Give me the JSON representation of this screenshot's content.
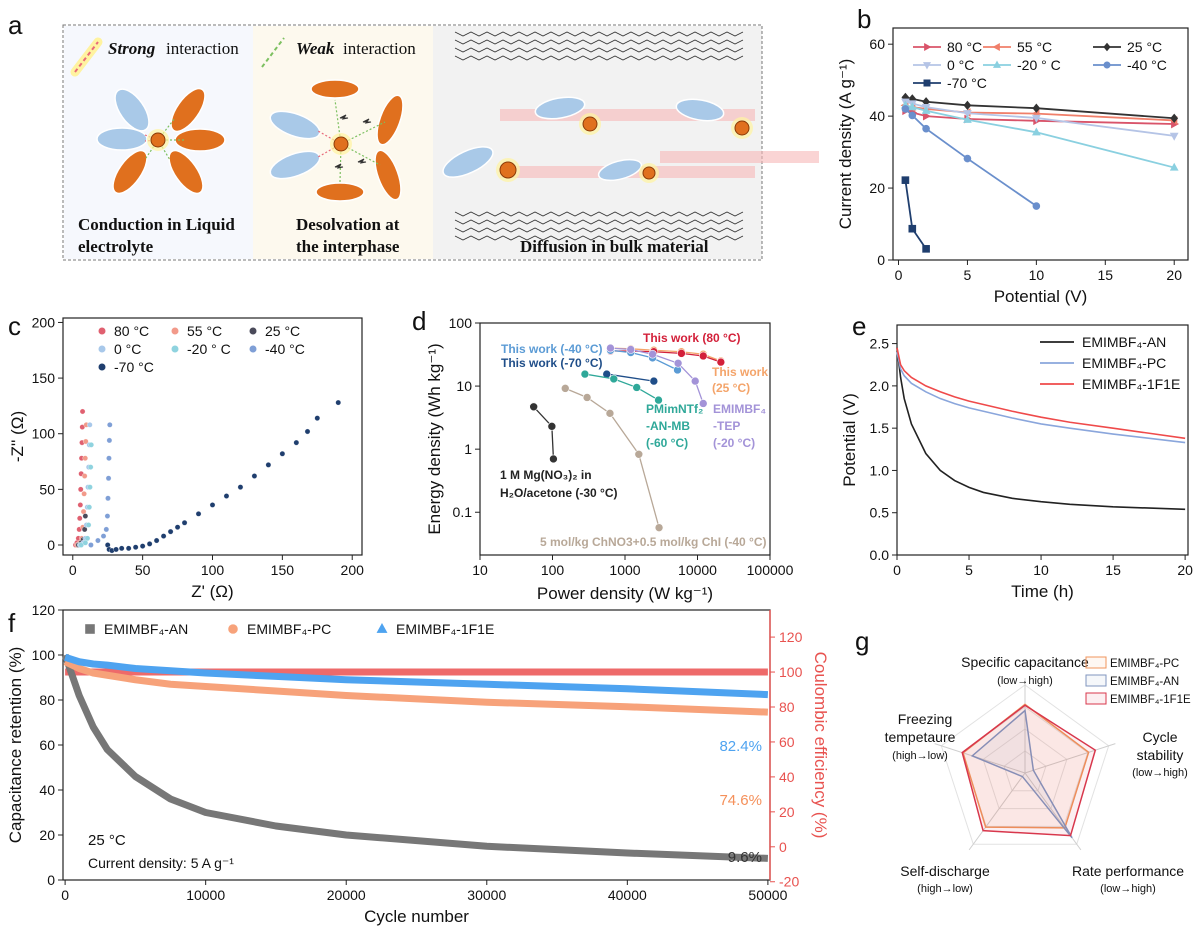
{
  "panel_labels": [
    "a",
    "b",
    "c",
    "d",
    "e",
    "f",
    "g"
  ],
  "panel_a": {
    "strong_word": "Strong",
    "strong_rest": " interaction",
    "weak_word": "Weak",
    "weak_rest": " interaction",
    "caption1_line1": "Conduction in Liquid",
    "caption1_line2": "electrolyte",
    "caption2_line1": "Desolvation at",
    "caption2_line2": "the interphase",
    "caption3": "Diffusion in bulk material",
    "colors": {
      "strong": "#c0152b",
      "weak": "#6aab3e",
      "cation": "#e0701e",
      "solvent": "#a9c9e8",
      "caption1": "#2e75b6",
      "caption2": "#ed7d31",
      "caption3": "#333333"
    }
  },
  "chart_data": [
    {
      "id": "b",
      "type": "line",
      "xlabel": "Potential (V)",
      "ylabel": "Current density (A g⁻¹)",
      "xlim": [
        -0.4,
        21
      ],
      "ylim": [
        0,
        64.5
      ],
      "xticks": [
        0,
        5,
        10,
        15,
        20
      ],
      "yticks": [
        0,
        20,
        40,
        60
      ],
      "legend_placement": "top",
      "series": [
        {
          "name": "80 °C",
          "color": "#d9546a",
          "marker": "tri-right",
          "x": [
            0.5,
            1,
            2,
            5,
            10,
            20
          ],
          "y": [
            41.5,
            41,
            40,
            39.2,
            38.7,
            37.8
          ]
        },
        {
          "name": "55 °C",
          "color": "#f07f6a",
          "marker": "tri-left",
          "x": [
            0.5,
            1,
            2,
            5,
            10,
            20
          ],
          "y": [
            43,
            42.5,
            42,
            41,
            40.7,
            38.8
          ]
        },
        {
          "name": "25 °C",
          "color": "#333333",
          "marker": "diamond",
          "x": [
            0.5,
            1,
            2,
            5,
            10,
            20
          ],
          "y": [
            45.2,
            44.8,
            44,
            43,
            42.2,
            39.4
          ]
        },
        {
          "name": "0 °C",
          "color": "#b5c4e6",
          "marker": "tri-down",
          "x": [
            0.5,
            1,
            2,
            5,
            10,
            20
          ],
          "y": [
            44,
            43.5,
            42.5,
            40.8,
            39.5,
            34.5
          ]
        },
        {
          "name": "-20 ° C",
          "color": "#8ad0e0",
          "marker": "tri-up",
          "x": [
            0.5,
            1,
            2,
            5,
            10,
            20
          ],
          "y": [
            43,
            42.5,
            41.5,
            39,
            35.5,
            25.7
          ]
        },
        {
          "name": "-40 °C",
          "color": "#6a8fcc",
          "marker": "circle",
          "x": [
            0.5,
            1,
            2,
            5,
            10
          ],
          "y": [
            42,
            40.2,
            36.5,
            28.2,
            15
          ]
        },
        {
          "name": "-70 °C",
          "color": "#1f3e6e",
          "marker": "square",
          "x": [
            0.5,
            1,
            2
          ],
          "y": [
            22.2,
            8.7,
            3.1
          ]
        }
      ]
    },
    {
      "id": "c",
      "type": "scatter",
      "xlabel": "Z' (Ω)",
      "ylabel": "-Z'' (Ω)",
      "xlim": [
        -7,
        207
      ],
      "ylim": [
        -9,
        204
      ],
      "xticks": [
        0,
        50,
        100,
        150,
        200
      ],
      "yticks": [
        0,
        50,
        100,
        150,
        200
      ],
      "legend_placement": "top-left",
      "series": [
        {
          "name": "80 °C",
          "color": "#e06070",
          "points": [
            [
              2,
              0
            ],
            [
              3,
              2
            ],
            [
              4,
              6
            ],
            [
              4.6,
              14
            ],
            [
              5,
              24
            ],
            [
              5.4,
              36
            ],
            [
              5.7,
              50
            ],
            [
              6,
              64
            ],
            [
              6.3,
              78
            ],
            [
              6.6,
              92
            ],
            [
              6.8,
              106
            ],
            [
              7,
              120
            ]
          ]
        },
        {
          "name": "55 °C",
          "color": "#f29a8a",
          "points": [
            [
              3,
              0
            ],
            [
              5,
              2
            ],
            [
              6.5,
              6
            ],
            [
              7.2,
              16
            ],
            [
              7.7,
              30
            ],
            [
              8.1,
              46
            ],
            [
              8.5,
              62
            ],
            [
              8.9,
              78
            ],
            [
              9.3,
              93
            ],
            [
              9.7,
              108
            ]
          ]
        },
        {
          "name": "25 °C",
          "color": "#4a4a5a",
          "points": [
            [
              4,
              0
            ],
            [
              6,
              2
            ],
            [
              7.5,
              5
            ],
            [
              8.5,
              14
            ],
            [
              9,
              26
            ]
          ]
        },
        {
          "name": "0 °C",
          "color": "#a8c8ea",
          "points": [
            [
              5,
              0
            ],
            [
              7.5,
              2
            ],
            [
              9,
              6
            ],
            [
              9.8,
              18
            ],
            [
              10.4,
              34
            ],
            [
              10.9,
              52
            ],
            [
              11.4,
              70
            ],
            [
              11.8,
              90
            ],
            [
              12.2,
              108
            ]
          ]
        },
        {
          "name": "-20 ° C",
          "color": "#8fd3df",
          "points": [
            [
              6,
              0
            ],
            [
              9,
              2
            ],
            [
              10.5,
              6
            ],
            [
              11.3,
              18
            ],
            [
              11.8,
              34
            ],
            [
              12.3,
              52
            ],
            [
              12.8,
              70
            ],
            [
              13.2,
              90
            ]
          ]
        },
        {
          "name": "-40 °C",
          "color": "#7f9fd6",
          "points": [
            [
              13,
              0
            ],
            [
              18,
              4
            ],
            [
              22,
              8
            ],
            [
              24,
              14
            ],
            [
              24.8,
              26
            ],
            [
              25.2,
              42
            ],
            [
              25.6,
              60
            ],
            [
              25.9,
              78
            ],
            [
              26.2,
              94
            ],
            [
              26.5,
              108
            ]
          ]
        },
        {
          "name": "-70 °C",
          "color": "#1f3e6e",
          "points": [
            [
              25,
              0
            ],
            [
              26,
              -4
            ],
            [
              28,
              -5
            ],
            [
              31,
              -4
            ],
            [
              35,
              -3
            ],
            [
              40,
              -3
            ],
            [
              45,
              -2
            ],
            [
              50,
              -1
            ],
            [
              55,
              1
            ],
            [
              60,
              4
            ],
            [
              65,
              8
            ],
            [
              70,
              12
            ],
            [
              75,
              16
            ],
            [
              80,
              20
            ],
            [
              90,
              28
            ],
            [
              100,
              36
            ],
            [
              110,
              44
            ],
            [
              120,
              52
            ],
            [
              130,
              62
            ],
            [
              140,
              72
            ],
            [
              150,
              82
            ],
            [
              160,
              92
            ],
            [
              168,
              102
            ],
            [
              175,
              114
            ],
            [
              190,
              128
            ]
          ]
        }
      ]
    },
    {
      "id": "d",
      "type": "line",
      "xlabel": "Power density (W kg⁻¹)",
      "ylabel": "Energy density (Wh kg⁻¹)",
      "xscale": "log",
      "yscale": "log",
      "xlim": [
        10,
        100000
      ],
      "ylim": [
        0.021,
        100
      ],
      "xticks": [
        10,
        100,
        1000,
        10000,
        100000
      ],
      "xtick_labels": [
        "10",
        "100",
        "1000",
        "10000",
        "100000"
      ],
      "yticks": [
        0.1,
        1,
        10,
        100
      ],
      "ytick_labels": [
        "0.1",
        "1",
        "10",
        "100"
      ],
      "series": [
        {
          "name": "This work (25 °C)",
          "color": "#f4a46a",
          "points": [
            [
              630,
              40
            ],
            [
              1200,
              39
            ],
            [
              2500,
              37
            ],
            [
              6000,
              35
            ],
            [
              12000,
              32
            ],
            [
              21000,
              25
            ]
          ]
        },
        {
          "name": "This work (80 °C)",
          "color": "#d3203a",
          "points": [
            [
              630,
              36
            ],
            [
              1200,
              36
            ],
            [
              2500,
              35
            ],
            [
              6000,
              33
            ],
            [
              12000,
              30
            ],
            [
              21000,
              24
            ]
          ]
        },
        {
          "name": "This work (-40 °C)",
          "color": "#5b9bd5",
          "points": [
            [
              630,
              37
            ],
            [
              1200,
              34
            ],
            [
              2400,
              28
            ],
            [
              5300,
              18
            ]
          ]
        },
        {
          "name": "EMIMBF₄-TEP (-20 °C)",
          "color": "#a393d8",
          "points": [
            [
              630,
              40
            ],
            [
              1200,
              38
            ],
            [
              2400,
              32
            ],
            [
              5400,
              23
            ],
            [
              9300,
              12
            ],
            [
              12000,
              5.3
            ]
          ]
        },
        {
          "name": "This work (-70 °C)",
          "color": "#1f4e89",
          "points": [
            [
              560,
              15.5
            ],
            [
              2500,
              12
            ]
          ]
        },
        {
          "name": "PMimNTf₂-AN-MB (-60 °C)",
          "color": "#2fa899",
          "points": [
            [
              280,
              15.5
            ],
            [
              700,
              13
            ],
            [
              1450,
              9.5
            ],
            [
              2900,
              6
            ]
          ]
        },
        {
          "name": "1 M Mg(NO₃)₂ in H₂O/acetone (-30 °C)",
          "color": "#333333",
          "points": [
            [
              55,
              4.7
            ],
            [
              98,
              2.3
            ],
            [
              103,
              0.7
            ]
          ]
        },
        {
          "name": "5 mol/kg ChNO3+0.5 mol/kg ChI (-40 °C)",
          "color": "#b8a898",
          "points": [
            [
              150,
              9.2
            ],
            [
              300,
              6.6
            ],
            [
              620,
              3.7
            ],
            [
              1550,
              0.83
            ],
            [
              2950,
              0.057
            ]
          ]
        }
      ],
      "annotations": {
        "w80": "This work (80 °C)",
        "w40": "This work (-40 °C)",
        "w70": "This work (-70 °C)",
        "w25a": "This work",
        "w25b": "(25 °C)",
        "pm1": "PMimNTf₂",
        "pm2": "-AN-MB",
        "pm3": "(-60 °C)",
        "em1": "EMIMBF₄",
        "em2": "-TEP",
        "em3": "(-20 °C)",
        "mg1": "1 M Mg(NO₃)₂ in",
        "mg2": "H₂O/acetone (-30 °C)",
        "ch": "5 mol/kg ChNO3+0.5 mol/kg ChI (-40 °C)"
      }
    },
    {
      "id": "e",
      "type": "line",
      "xlabel": "Time (h)",
      "ylabel": "Potential (V)",
      "xlim": [
        0,
        20.2
      ],
      "ylim": [
        0,
        2.72
      ],
      "xticks": [
        0,
        5,
        10,
        15,
        20
      ],
      "yticks": [
        0,
        0.5,
        1.0,
        1.5,
        2.0,
        2.5
      ],
      "ytick_labels": [
        "0.0",
        "0.5",
        "1.0",
        "1.5",
        "2.0",
        "2.5"
      ],
      "legend_placement": "top-right",
      "x": [
        0,
        0.25,
        0.5,
        1,
        2,
        3,
        4,
        5,
        6,
        8,
        10,
        12,
        15,
        20
      ],
      "series": [
        {
          "name": "EMIMBF₄-AN",
          "color": "#222222",
          "values": [
            2.45,
            2.1,
            1.85,
            1.55,
            1.2,
            1.0,
            0.88,
            0.8,
            0.74,
            0.67,
            0.63,
            0.6,
            0.57,
            0.54
          ]
        },
        {
          "name": "EMIMBF₄-PC",
          "color": "#8aa6dc",
          "values": [
            2.4,
            2.2,
            2.12,
            2.03,
            1.93,
            1.85,
            1.79,
            1.74,
            1.7,
            1.62,
            1.55,
            1.5,
            1.43,
            1.33
          ]
        },
        {
          "name": "EMIMBF₄-1F1E",
          "color": "#ef4a4a",
          "values": [
            2.45,
            2.25,
            2.18,
            2.1,
            2.0,
            1.93,
            1.87,
            1.82,
            1.78,
            1.7,
            1.63,
            1.57,
            1.5,
            1.38
          ]
        }
      ]
    },
    {
      "id": "f",
      "type": "scatter",
      "xlabel": "Cycle number",
      "ylabel": "Capacitance retention (%)",
      "ylabel_right": "Coulombic efficiency (%)",
      "xlim": [
        -150,
        50150
      ],
      "ylim": [
        0,
        120
      ],
      "ylim_right": [
        -19,
        135.5
      ],
      "xticks": [
        0,
        10000,
        20000,
        30000,
        40000,
        50000
      ],
      "yticks": [
        0,
        20,
        40,
        60,
        80,
        100,
        120
      ],
      "yticks_right": [
        -20,
        0,
        20,
        40,
        60,
        80,
        100,
        120
      ],
      "right_axis_color": "#e8524f",
      "x": [
        0,
        1000,
        2000,
        3000,
        5000,
        7500,
        10000,
        15000,
        20000,
        30000,
        40000,
        50000
      ],
      "series": [
        {
          "name": "EMIMBF₄-AN",
          "color": "#777777",
          "marker": "square",
          "values": [
            100,
            82,
            68,
            58,
            46,
            36,
            30,
            24,
            20,
            15,
            12,
            9.6
          ]
        },
        {
          "name": "EMIMBF₄-PC",
          "color": "#f7a27a",
          "marker": "circle",
          "values": [
            97,
            94,
            92,
            91,
            89,
            87,
            86,
            84,
            82,
            79,
            77,
            74.6
          ]
        },
        {
          "name": "EMIMBF₄-1F1E",
          "color": "#4ea3f0",
          "marker": "tri-up",
          "values": [
            99,
            97,
            96,
            95.5,
            94,
            93,
            92,
            90.5,
            89,
            87,
            85,
            82.4
          ]
        }
      ],
      "coulombic_efficiency": {
        "color": "#ee6a6a",
        "value": 100
      },
      "end_labels": [
        {
          "text": "82.4%",
          "color": "#4ea3f0"
        },
        {
          "text": "74.6%",
          "color": "#f5905a"
        },
        {
          "text": "9.6%",
          "color": "#333333"
        }
      ],
      "notes": {
        "temp": "25 °C",
        "current": "Current density: 5 A g⁻¹"
      },
      "legend_placement": "top"
    },
    {
      "id": "g",
      "type": "radar",
      "axes": [
        {
          "label": "Specific capacitance",
          "sub": "(low→high)"
        },
        {
          "label": "Cycle stability",
          "label2": "",
          "sub": "(low→high)"
        },
        {
          "label": "Rate performance",
          "sub": "(low→high)"
        },
        {
          "label": "Self-discharge",
          "sub": "(high→low)"
        },
        {
          "label": "Freezing tempetaure",
          "sub": "(high→low)"
        }
      ],
      "series": [
        {
          "name": "EMIMBF₄-PC",
          "color": "#f0955c",
          "values": [
            0.78,
            0.76,
            0.77,
            0.76,
            0.74
          ]
        },
        {
          "name": "EMIMBF₄-AN",
          "color": "#8096bf",
          "values": [
            0.71,
            0.1,
            0.91,
            0.05,
            0.63
          ]
        },
        {
          "name": "EMIMBF₄-1F1E",
          "color": "#d8374c",
          "values": [
            0.77,
            0.84,
            0.88,
            0.81,
            0.75
          ]
        }
      ],
      "legend_placement": "top-right"
    }
  ]
}
